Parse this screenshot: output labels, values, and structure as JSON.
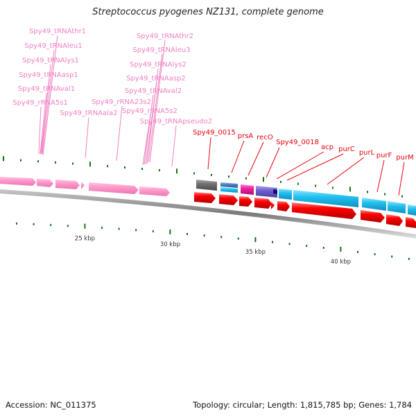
{
  "title": "Streptococcus pyogenes NZ131, complete genome",
  "footer": {
    "accession": "Accession: NC_011375",
    "summary": "Topology: circular; Length: 1,815,785 bp; Genes: 1,784"
  },
  "colors": {
    "rna_label": "#f080c0",
    "rna_feature": "#ff99cc",
    "gene_label": "#e8000b",
    "cds": "#ff0000",
    "gene_cyan": "#20c0f0",
    "gene_gray": "#707070",
    "gene_steelblue": "#4a80c0",
    "gene_magenta": "#f020a0",
    "gene_purple": "#7060d0",
    "gene_navy": "#101070",
    "tick": "#107010",
    "backbone": "#808080"
  },
  "scale": {
    "unit": "kbp",
    "major_ticks": [
      {
        "kbp": 25,
        "label": "25 kbp"
      },
      {
        "kbp": 30,
        "label": "30 kbp"
      },
      {
        "kbp": 35,
        "label": "35 kbp"
      },
      {
        "kbp": 40,
        "label": "40 kbp"
      }
    ]
  },
  "rna_labels": [
    {
      "name": "Spy49_tRNAthr1"
    },
    {
      "name": "Spy49_tRNAleu1"
    },
    {
      "name": "Spy49_tRNAlys1"
    },
    {
      "name": "Spy49_tRNAasp1"
    },
    {
      "name": "Spy49_tRNAval1"
    },
    {
      "name": "Spy49_rRNA5s1"
    },
    {
      "name": "Spy49_tRNAala2"
    },
    {
      "name": "Spy49_rRNA23s2"
    },
    {
      "name": "Spy49_tRNAthr2"
    },
    {
      "name": "Spy49_tRNAleu3"
    },
    {
      "name": "Spy49_tRNAlys2"
    },
    {
      "name": "Spy49_tRNAasp2"
    },
    {
      "name": "Spy49_tRNAval2"
    },
    {
      "name": "Spy49_rRNA5s2"
    },
    {
      "name": "Spy49_tRNApseudo2"
    }
  ],
  "gene_labels": [
    {
      "name": "Spy49_0015"
    },
    {
      "name": "prsA"
    },
    {
      "name": "recO"
    },
    {
      "name": "Spy49_0018"
    },
    {
      "name": "acp"
    },
    {
      "name": "purC"
    },
    {
      "name": "purL"
    },
    {
      "name": "purF"
    },
    {
      "name": "purM"
    }
  ]
}
